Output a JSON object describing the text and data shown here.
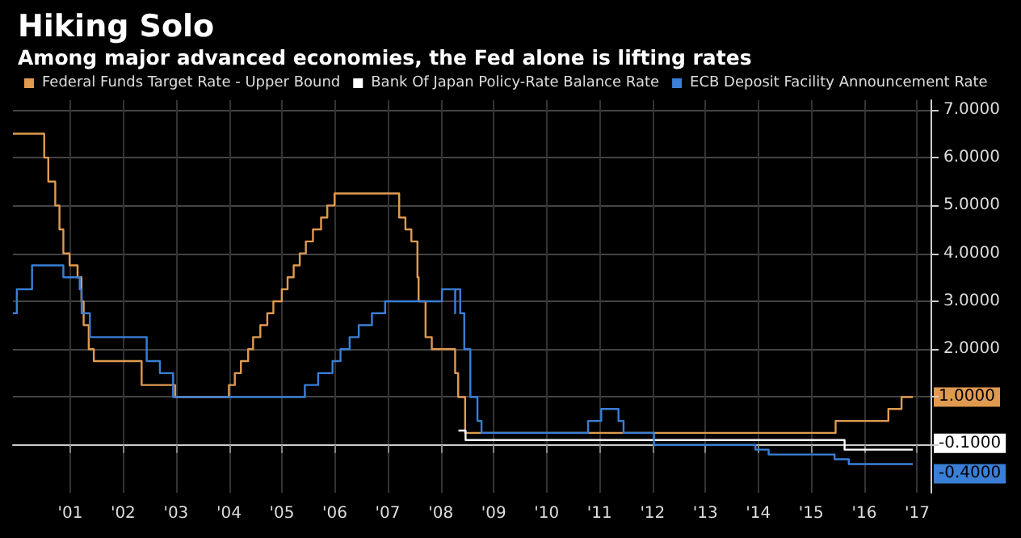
{
  "chart_data": {
    "type": "step",
    "title": "Hiking Solo",
    "subtitle": "Among major advanced economies, the Fed alone is lifting rates",
    "legend": "top left",
    "grid": true,
    "marker": "none",
    "line_style": "solid",
    "xlim": [
      "2000-06",
      "2017-10"
    ],
    "ylim": [
      -1,
      7.2
    ],
    "xticks": [
      {
        "value": "2001-07",
        "label": "'01"
      },
      {
        "value": "2002-07",
        "label": "'02"
      },
      {
        "value": "2003-07",
        "label": "'03"
      },
      {
        "value": "2004-07",
        "label": "'04"
      },
      {
        "value": "2005-07",
        "label": "'05"
      },
      {
        "value": "2006-07",
        "label": "'06"
      },
      {
        "value": "2007-07",
        "label": "'07"
      },
      {
        "value": "2008-07",
        "label": "'08"
      },
      {
        "value": "2009-07",
        "label": "'09"
      },
      {
        "value": "2010-07",
        "label": "'10"
      },
      {
        "value": "2011-07",
        "label": "'11"
      },
      {
        "value": "2012-07",
        "label": "'12"
      },
      {
        "value": "2013-07",
        "label": "'13"
      },
      {
        "value": "2014-07",
        "label": "'14"
      },
      {
        "value": "2015-07",
        "label": "'15"
      },
      {
        "value": "2016-07",
        "label": "'16"
      },
      {
        "value": "2017-07",
        "label": "'17"
      }
    ],
    "yticks": [
      {
        "value": 0,
        "label": null
      },
      {
        "value": 1,
        "label": null
      },
      {
        "value": 2,
        "label": "2.0000"
      },
      {
        "value": 3,
        "label": "3.0000"
      },
      {
        "value": 4,
        "label": "4.0000"
      },
      {
        "value": 5,
        "label": "5.0000"
      },
      {
        "value": 6,
        "label": "6.0000"
      },
      {
        "value": 7,
        "label": "7.0000"
      }
    ],
    "series": [
      {
        "name": "Federal Funds Target Rate - Upper Bound",
        "color": "#e09a50",
        "x": [
          "2000-06",
          "2001-01-03",
          "2001-01-31",
          "2001-03-20",
          "2001-04-18",
          "2001-05-15",
          "2001-06-27",
          "2001-08-21",
          "2001-09-17",
          "2001-10-02",
          "2001-11-06",
          "2001-12-11",
          "2002-11-06",
          "2003-06-25",
          "2004-06-30",
          "2004-08-10",
          "2004-09-21",
          "2004-11-10",
          "2004-12-14",
          "2005-02-02",
          "2005-03-22",
          "2005-05-03",
          "2005-06-30",
          "2005-08-09",
          "2005-09-20",
          "2005-11-01",
          "2005-12-13",
          "2006-01-31",
          "2006-03-28",
          "2006-05-10",
          "2006-06-29",
          "2007-09-18",
          "2007-10-31",
          "2007-12-11",
          "2008-01-22",
          "2008-01-30",
          "2008-03-18",
          "2008-04-30",
          "2008-10-08",
          "2008-10-29",
          "2008-12-16",
          "2015-12-16",
          "2016-12-14",
          "2017-03-15",
          "2017-06"
        ],
        "values": [
          6.5,
          6,
          5.5,
          5,
          4.5,
          4,
          3.75,
          3.5,
          3,
          2.5,
          2,
          1.75,
          1.25,
          1,
          1.25,
          1.5,
          1.75,
          2,
          2.25,
          2.5,
          2.75,
          3,
          3.25,
          3.5,
          3.75,
          4,
          4.25,
          4.5,
          4.75,
          5,
          5.25,
          4.75,
          4.5,
          4.25,
          3.5,
          3,
          2.25,
          2,
          1.5,
          1,
          0.25,
          0.5,
          0.75,
          1,
          1
        ]
      },
      {
        "name": "Bank Of Japan Policy-Rate Balance Rate",
        "color": "#ffffff",
        "x": [
          "2008-10-31",
          "2008-12-19",
          "2016-02-16",
          "2017-06"
        ],
        "values": [
          0.3,
          0.1,
          -0.1,
          -0.1
        ]
      },
      {
        "name": "ECB Deposit Facility Announcement Rate",
        "color": "#3a7fd5",
        "x": [
          "2000-06",
          "2000-06-28",
          "2000-10-11",
          "2001-05-15",
          "2001-09-05",
          "2001-09-18",
          "2001-11-14",
          "2002-12-11",
          "2003-03-12",
          "2003-06-11",
          "2005-12-06",
          "2006-03-08",
          "2006-06-15",
          "2006-08-09",
          "2006-10-11",
          "2006-12-13",
          "2007-03-14",
          "2007-06-13",
          "2008-07-09",
          "2008-10-08",
          "2008-10-09",
          "2008-11-12",
          "2008-12-10",
          "2009-01-21",
          "2009-03-11",
          "2009-04-08",
          "2011-04-13",
          "2011-07-13",
          "2011-11-09",
          "2011-12-14",
          "2012-07-11",
          "2014-06-11",
          "2014-09-10",
          "2015-12-09",
          "2016-03-16",
          "2017-06"
        ],
        "values": [
          2.75,
          3.25,
          3.75,
          3.5,
          3.25,
          2.75,
          2.25,
          1.75,
          1.5,
          1,
          1.25,
          1.5,
          1.75,
          2,
          2.25,
          2.5,
          2.75,
          3,
          3.25,
          2.75,
          3.25,
          2.75,
          2,
          1,
          0.5,
          0.25,
          0.5,
          0.75,
          0.5,
          0.25,
          0,
          -0.1,
          -0.2,
          -0.3,
          -0.4,
          -0.4
        ]
      }
    ],
    "annotations": [
      {
        "text": "1.0000",
        "x": "2017-06",
        "y": 1
      },
      {
        "text": "-0.1000",
        "x": "2017-06",
        "y": -0.1
      },
      {
        "text": "-0.4000",
        "x": "2017-06",
        "y": -0.4
      }
    ]
  }
}
